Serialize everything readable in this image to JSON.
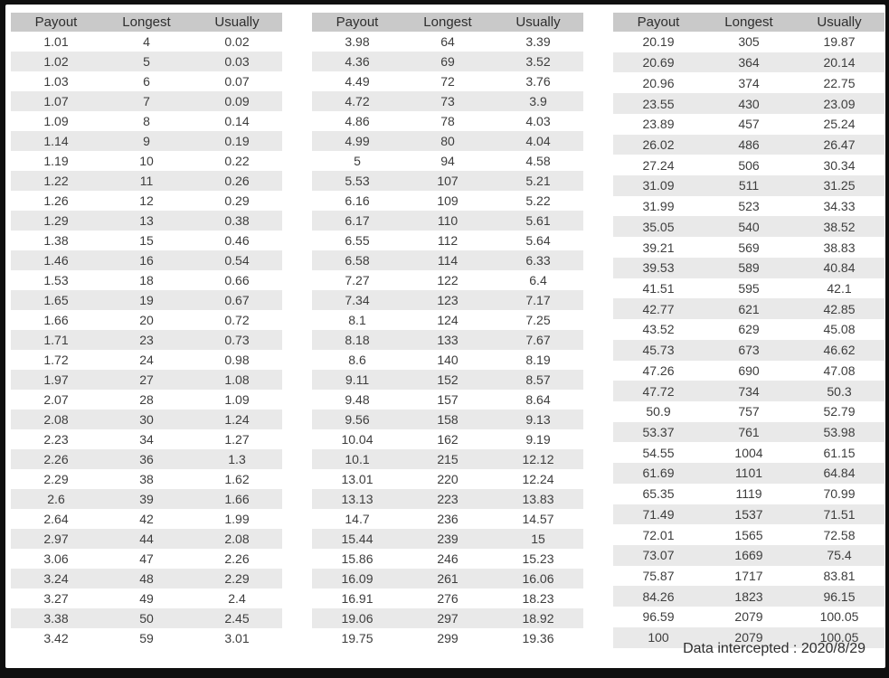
{
  "colors": {
    "frame": "#0f0f0f",
    "header_bg": "#c9c9c9",
    "stripe_bg": "#e9e9e9",
    "header_text": "#2e2e2e",
    "cell_text": "#3d3d3d"
  },
  "table_headers": [
    "Payout",
    "Longest",
    "Usually"
  ],
  "tables": [
    {
      "rows": [
        [
          "1.01",
          "4",
          "0.02"
        ],
        [
          "1.02",
          "5",
          "0.03"
        ],
        [
          "1.03",
          "6",
          "0.07"
        ],
        [
          "1.07",
          "7",
          "0.09"
        ],
        [
          "1.09",
          "8",
          "0.14"
        ],
        [
          "1.14",
          "9",
          "0.19"
        ],
        [
          "1.19",
          "10",
          "0.22"
        ],
        [
          "1.22",
          "11",
          "0.26"
        ],
        [
          "1.26",
          "12",
          "0.29"
        ],
        [
          "1.29",
          "13",
          "0.38"
        ],
        [
          "1.38",
          "15",
          "0.46"
        ],
        [
          "1.46",
          "16",
          "0.54"
        ],
        [
          "1.53",
          "18",
          "0.66"
        ],
        [
          "1.65",
          "19",
          "0.67"
        ],
        [
          "1.66",
          "20",
          "0.72"
        ],
        [
          "1.71",
          "23",
          "0.73"
        ],
        [
          "1.72",
          "24",
          "0.98"
        ],
        [
          "1.97",
          "27",
          "1.08"
        ],
        [
          "2.07",
          "28",
          "1.09"
        ],
        [
          "2.08",
          "30",
          "1.24"
        ],
        [
          "2.23",
          "34",
          "1.27"
        ],
        [
          "2.26",
          "36",
          "1.3"
        ],
        [
          "2.29",
          "38",
          "1.62"
        ],
        [
          "2.6",
          "39",
          "1.66"
        ],
        [
          "2.64",
          "42",
          "1.99"
        ],
        [
          "2.97",
          "44",
          "2.08"
        ],
        [
          "3.06",
          "47",
          "2.26"
        ],
        [
          "3.24",
          "48",
          "2.29"
        ],
        [
          "3.27",
          "49",
          "2.4"
        ],
        [
          "3.38",
          "50",
          "2.45"
        ],
        [
          "3.42",
          "59",
          "3.01"
        ]
      ]
    },
    {
      "rows": [
        [
          "3.98",
          "64",
          "3.39"
        ],
        [
          "4.36",
          "69",
          "3.52"
        ],
        [
          "4.49",
          "72",
          "3.76"
        ],
        [
          "4.72",
          "73",
          "3.9"
        ],
        [
          "4.86",
          "78",
          "4.03"
        ],
        [
          "4.99",
          "80",
          "4.04"
        ],
        [
          "5",
          "94",
          "4.58"
        ],
        [
          "5.53",
          "107",
          "5.21"
        ],
        [
          "6.16",
          "109",
          "5.22"
        ],
        [
          "6.17",
          "110",
          "5.61"
        ],
        [
          "6.55",
          "112",
          "5.64"
        ],
        [
          "6.58",
          "114",
          "6.33"
        ],
        [
          "7.27",
          "122",
          "6.4"
        ],
        [
          "7.34",
          "123",
          "7.17"
        ],
        [
          "8.1",
          "124",
          "7.25"
        ],
        [
          "8.18",
          "133",
          "7.67"
        ],
        [
          "8.6",
          "140",
          "8.19"
        ],
        [
          "9.11",
          "152",
          "8.57"
        ],
        [
          "9.48",
          "157",
          "8.64"
        ],
        [
          "9.56",
          "158",
          "9.13"
        ],
        [
          "10.04",
          "162",
          "9.19"
        ],
        [
          "10.1",
          "215",
          "12.12"
        ],
        [
          "13.01",
          "220",
          "12.24"
        ],
        [
          "13.13",
          "223",
          "13.83"
        ],
        [
          "14.7",
          "236",
          "14.57"
        ],
        [
          "15.44",
          "239",
          "15"
        ],
        [
          "15.86",
          "246",
          "15.23"
        ],
        [
          "16.09",
          "261",
          "16.06"
        ],
        [
          "16.91",
          "276",
          "18.23"
        ],
        [
          "19.06",
          "297",
          "18.92"
        ],
        [
          "19.75",
          "299",
          "19.36"
        ]
      ]
    },
    {
      "rows": [
        [
          "20.19",
          "305",
          "19.87"
        ],
        [
          "20.69",
          "364",
          "20.14"
        ],
        [
          "20.96",
          "374",
          "22.75"
        ],
        [
          "23.55",
          "430",
          "23.09"
        ],
        [
          "23.89",
          "457",
          "25.24"
        ],
        [
          "26.02",
          "486",
          "26.47"
        ],
        [
          "27.24",
          "506",
          "30.34"
        ],
        [
          "31.09",
          "511",
          "31.25"
        ],
        [
          "31.99",
          "523",
          "34.33"
        ],
        [
          "35.05",
          "540",
          "38.52"
        ],
        [
          "39.21",
          "569",
          "38.83"
        ],
        [
          "39.53",
          "589",
          "40.84"
        ],
        [
          "41.51",
          "595",
          "42.1"
        ],
        [
          "42.77",
          "621",
          "42.85"
        ],
        [
          "43.52",
          "629",
          "45.08"
        ],
        [
          "45.73",
          "673",
          "46.62"
        ],
        [
          "47.26",
          "690",
          "47.08"
        ],
        [
          "47.72",
          "734",
          "50.3"
        ],
        [
          "50.9",
          "757",
          "52.79"
        ],
        [
          "53.37",
          "761",
          "53.98"
        ],
        [
          "54.55",
          "1004",
          "61.15"
        ],
        [
          "61.69",
          "1101",
          "64.84"
        ],
        [
          "65.35",
          "1119",
          "70.99"
        ],
        [
          "71.49",
          "1537",
          "71.51"
        ],
        [
          "72.01",
          "1565",
          "72.58"
        ],
        [
          "73.07",
          "1669",
          "75.4"
        ],
        [
          "75.87",
          "1717",
          "83.81"
        ],
        [
          "84.26",
          "1823",
          "96.15"
        ],
        [
          "96.59",
          "2079",
          "100.05"
        ],
        [
          "100",
          "2079",
          "100.05"
        ]
      ]
    }
  ],
  "footer": {
    "text": "Data intercepted : 2020/8/29"
  }
}
